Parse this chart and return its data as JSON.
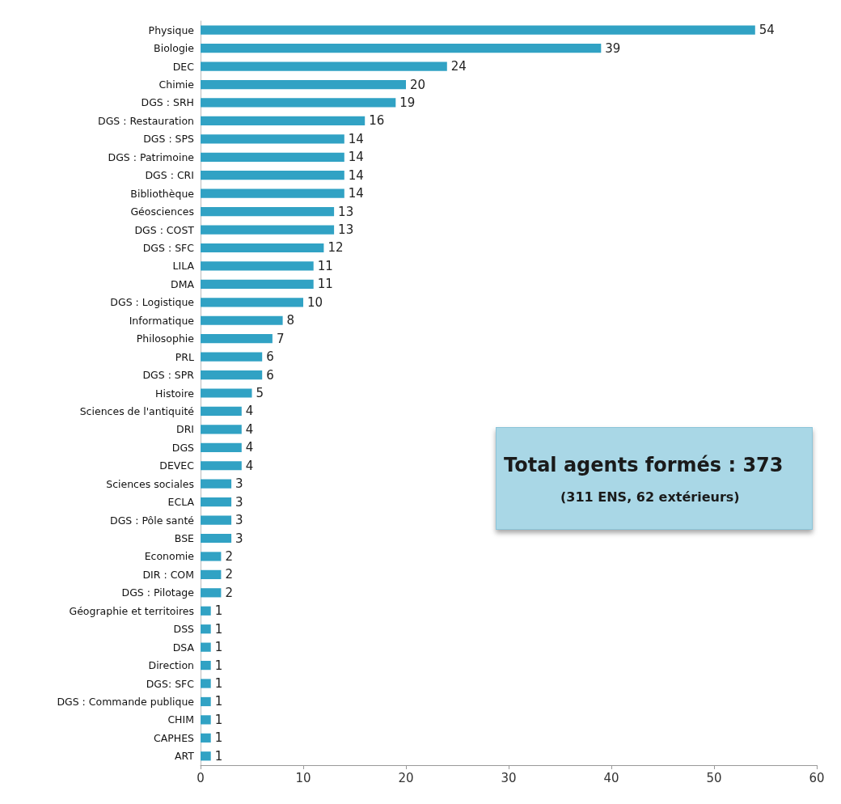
{
  "chart_data": {
    "type": "bar",
    "orientation": "horizontal",
    "categories": [
      "Physique",
      "Biologie",
      "DEC",
      "Chimie",
      "DGS : SRH",
      "DGS : Restauration",
      "DGS : SPS",
      "DGS : Patrimoine",
      "DGS : CRI",
      "Bibliothèque",
      "Géosciences",
      "DGS : COST",
      "DGS : SFC",
      "LILA",
      "DMA",
      "DGS : Logistique",
      "Informatique",
      "Philosophie",
      "PRL",
      "DGS : SPR",
      "Histoire",
      "Sciences de l'antiquité",
      "DRI",
      "DGS",
      "DEVEC",
      "Sciences sociales",
      "ECLA",
      "DGS : Pôle santé",
      "BSE",
      "Economie",
      "DIR : COM",
      "DGS : Pilotage",
      "Géographie et territoires",
      "DSS",
      "DSA",
      "Direction",
      "DGS: SFC",
      "DGS : Commande publique",
      "CHIM",
      "CAPHES",
      "ART"
    ],
    "values": [
      54,
      39,
      24,
      20,
      19,
      16,
      14,
      14,
      14,
      14,
      13,
      13,
      12,
      11,
      11,
      10,
      8,
      7,
      6,
      6,
      5,
      4,
      4,
      4,
      4,
      3,
      3,
      3,
      3,
      2,
      2,
      2,
      1,
      1,
      1,
      1,
      1,
      1,
      1,
      1,
      1
    ],
    "color": "#31a2c4",
    "xlim": [
      0,
      60
    ],
    "xticks": [
      0,
      10,
      20,
      30,
      40,
      50,
      60
    ],
    "data_labels": true,
    "grid": false,
    "annotations": [
      "Total agents formés : 373",
      "(311 ENS, 62 extérieurs)"
    ]
  }
}
